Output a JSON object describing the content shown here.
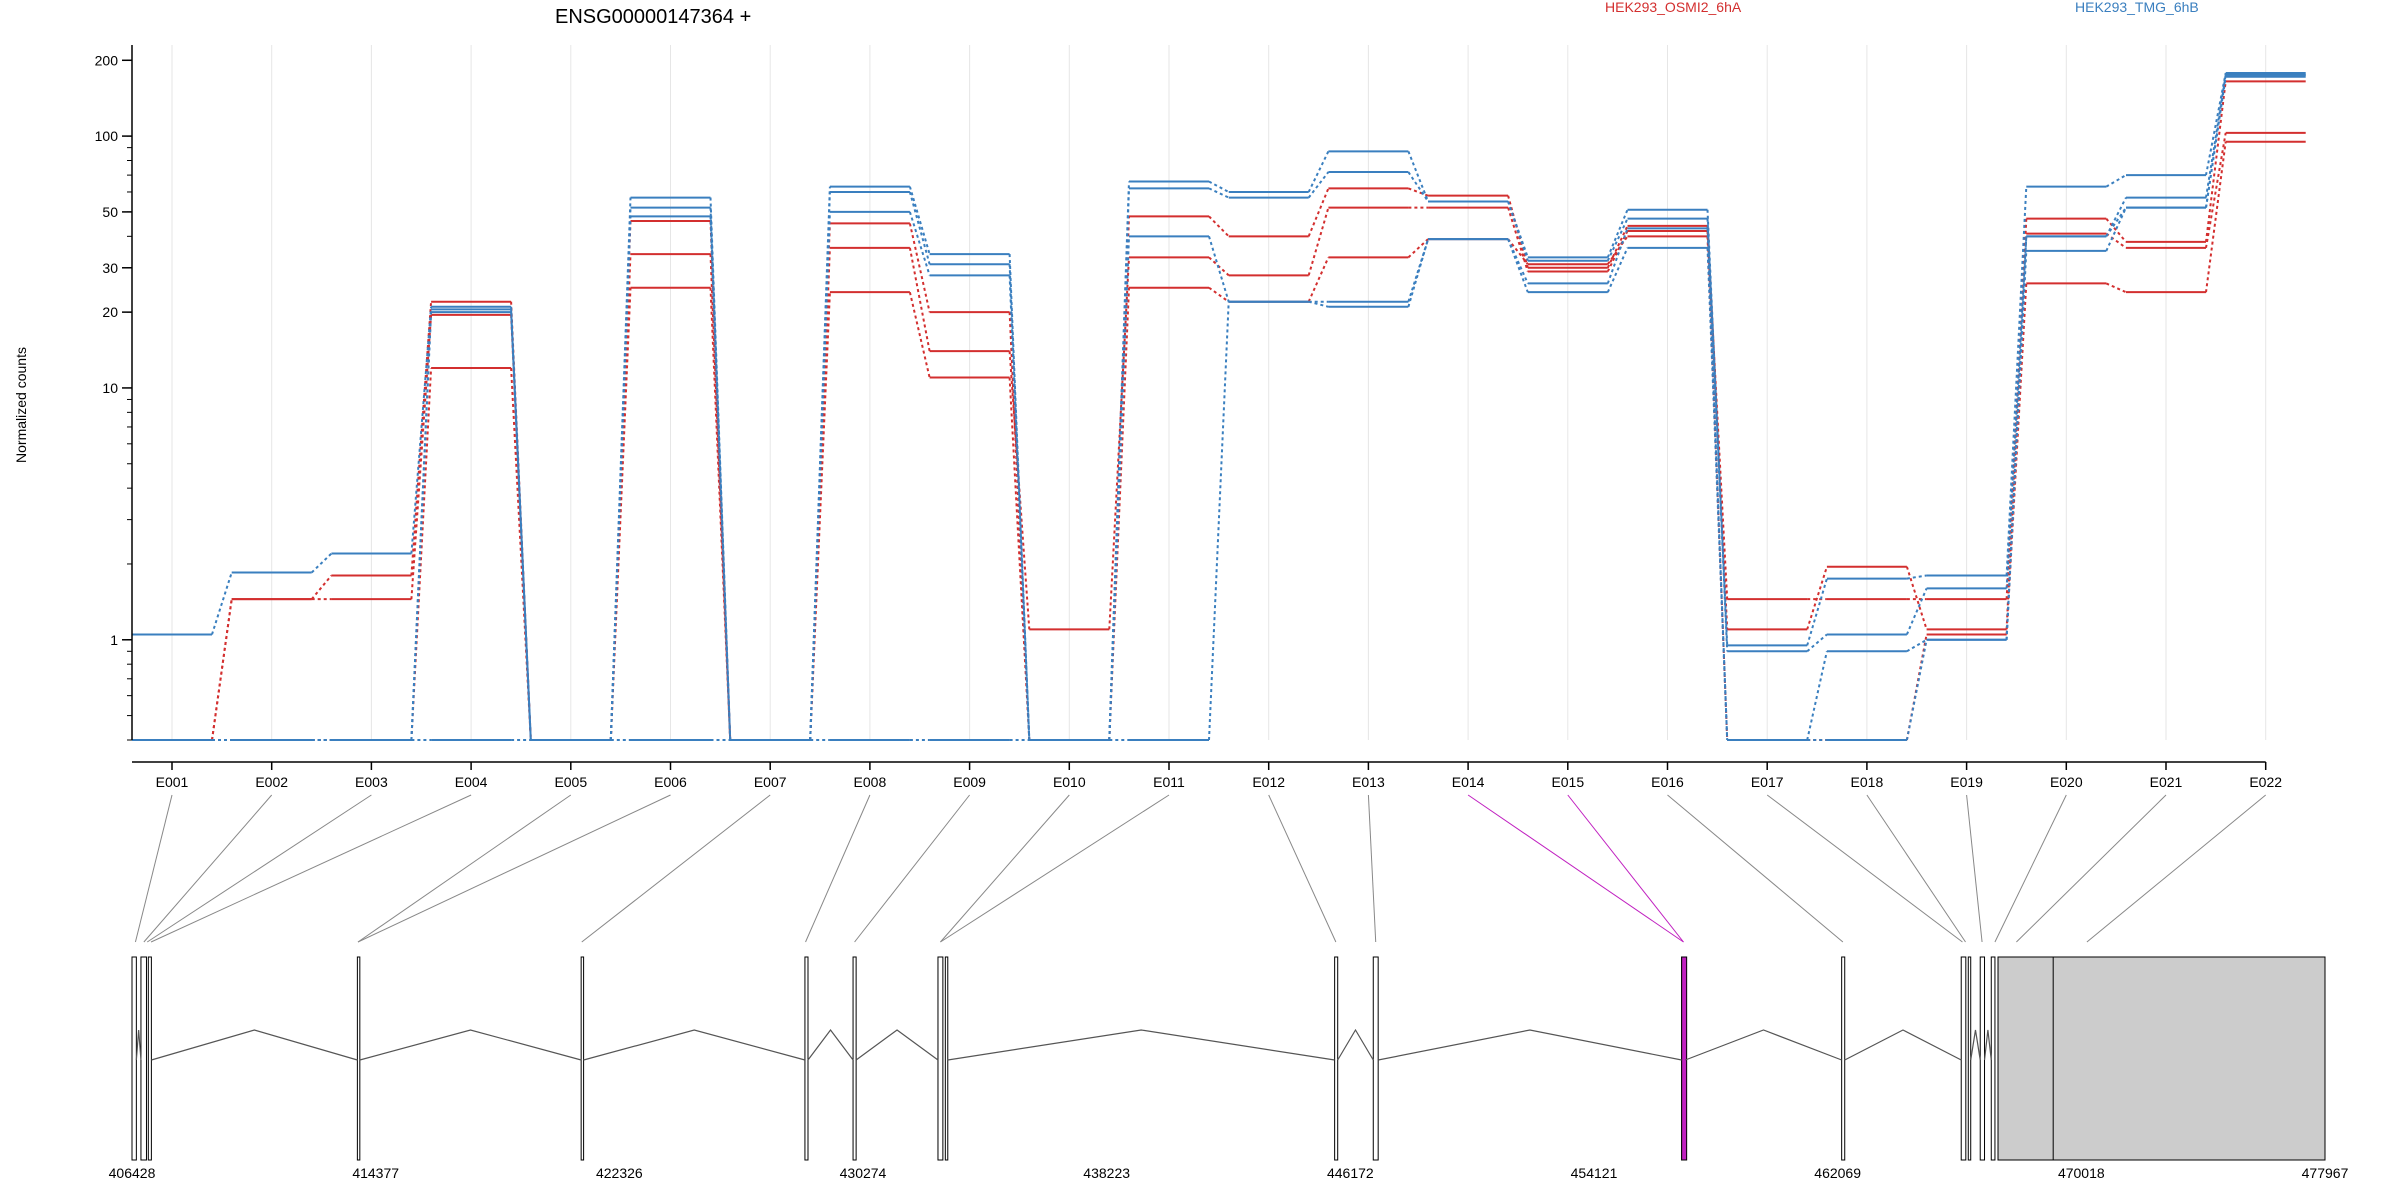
{
  "chart_data": {
    "type": "line",
    "title": "ENSG00000147364 +",
    "ylabel": "Normalized counts",
    "yscale": "log",
    "ylim": [
      0.4,
      230
    ],
    "yticks": [
      1,
      10,
      20,
      30,
      50,
      100,
      200
    ],
    "legend_placement": "top",
    "grid": true,
    "colors": {
      "red": "#d32f2f",
      "blue": "#3a7fbf",
      "highlight": "#c020c0",
      "gray_fill": "#cccccc"
    },
    "categories": [
      "E001",
      "E002",
      "E003",
      "E004",
      "E005",
      "E006",
      "E007",
      "E008",
      "E009",
      "E010",
      "E011",
      "E012",
      "E013",
      "E014",
      "E015",
      "E016",
      "E017",
      "E018",
      "E019",
      "E020",
      "E021",
      "E022"
    ],
    "groups": [
      {
        "name": "HEK293_OSMI2_6hA",
        "color": "#d32f2f"
      },
      {
        "name": "HEK293_TMG_6hB",
        "color": "#3a7fbf"
      }
    ],
    "series": [
      {
        "color": "#d32f2f",
        "values": [
          0.4,
          0.4,
          0.4,
          12,
          0.4,
          25,
          0.4,
          24,
          11,
          0.4,
          25,
          22,
          33,
          39,
          31,
          40,
          0.4,
          0.4,
          1.05,
          26,
          24,
          95
        ]
      },
      {
        "color": "#d32f2f",
        "values": [
          0.4,
          1.45,
          1.45,
          19.5,
          0.4,
          34,
          0.4,
          36,
          14,
          1.1,
          33,
          28,
          52,
          52,
          29,
          42,
          1.45,
          1.45,
          1.45,
          41,
          36,
          103
        ]
      },
      {
        "color": "#d32f2f",
        "values": [
          0.4,
          1.45,
          1.8,
          22,
          0.4,
          46,
          0.4,
          45,
          20,
          0.4,
          48,
          40,
          62,
          58,
          30,
          44,
          1.1,
          1.95,
          1.1,
          47,
          38,
          165
        ]
      },
      {
        "color": "#3a7fbf",
        "values": [
          1.05,
          1.85,
          2.2,
          21,
          0.4,
          57,
          0.4,
          63,
          34,
          0.4,
          66,
          60,
          87,
          55,
          33,
          51,
          0.95,
          1.75,
          1.8,
          63,
          70,
          178
        ]
      },
      {
        "color": "#3a7fbf",
        "values": [
          0.4,
          0.4,
          0.4,
          20.5,
          0.4,
          52,
          0.4,
          60,
          31,
          0.4,
          62,
          57,
          72,
          55,
          32,
          47,
          0.9,
          1.05,
          1.6,
          40,
          57,
          175
        ]
      },
      {
        "color": "#3a7fbf",
        "values": [
          0.4,
          0.4,
          0.4,
          20,
          0.4,
          48,
          0.4,
          50,
          28,
          0.4,
          40,
          22,
          21,
          39,
          26,
          43,
          0.4,
          0.9,
          1.0,
          35,
          52,
          172
        ]
      },
      {
        "color": "#3a7fbf",
        "values": [
          0.4,
          0.4,
          0.4,
          0.4,
          0.4,
          0.4,
          0.4,
          0.4,
          0.4,
          0.4,
          0.4,
          22,
          22,
          39,
          24,
          36,
          0.4,
          0.4,
          1.0,
          40,
          52,
          175
        ]
      }
    ],
    "gene_model": {
      "genomic_ticks": [
        "406428",
        "414377",
        "422326",
        "430274",
        "438223",
        "446172",
        "454121",
        "462069",
        "470018",
        "477967"
      ],
      "genomic_range": [
        406428,
        477967
      ],
      "exon_positions": [
        406540,
        406815,
        406925,
        407050,
        413800,
        421100,
        428400,
        430000,
        432800,
        433000,
        445700,
        447000,
        457040,
        462240,
        466140,
        466780,
        467200,
        467900,
        469700,
        470200,
        477967
      ],
      "exon_links": [
        [
          1,
          406540
        ],
        [
          2,
          406815
        ],
        [
          3,
          406925
        ],
        [
          4,
          407050
        ],
        [
          5,
          413800
        ],
        [
          6,
          413800
        ],
        [
          7,
          421100
        ],
        [
          8,
          428400
        ],
        [
          9,
          430000
        ],
        [
          10,
          432800
        ],
        [
          11,
          432800
        ],
        [
          12,
          445700
        ],
        [
          13,
          447000
        ],
        [
          14,
          457040
        ],
        [
          15,
          457040
        ],
        [
          16,
          462240
        ],
        [
          17,
          466140
        ],
        [
          18,
          466240
        ],
        [
          19,
          466780
        ],
        [
          20,
          467200
        ],
        [
          21,
          467900
        ],
        [
          22,
          470200
        ]
      ],
      "highlight_exon_labels": [
        "E014",
        "E015"
      ],
      "exons_drawn": [
        [
          406428,
          406570
        ],
        [
          406720,
          406900
        ],
        [
          406960,
          407060
        ],
        [
          413780,
          413860
        ],
        [
          421080,
          421160
        ],
        [
          428380,
          428480
        ],
        [
          429950,
          430050
        ],
        [
          432720,
          432880
        ],
        [
          432960,
          433040
        ],
        [
          445660,
          445760
        ],
        [
          446920,
          447080
        ],
        [
          456980,
          457100
        ],
        [
          462200,
          462300
        ],
        [
          466100,
          466250
        ],
        [
          466330,
          466410
        ],
        [
          466720,
          466860
        ],
        [
          467080,
          467200
        ],
        [
          467300,
          477967
        ]
      ],
      "gray_region": [
        467300,
        477967
      ],
      "intron_split_at": 469100,
      "magenta_exon": [
        456980,
        457100
      ]
    }
  }
}
